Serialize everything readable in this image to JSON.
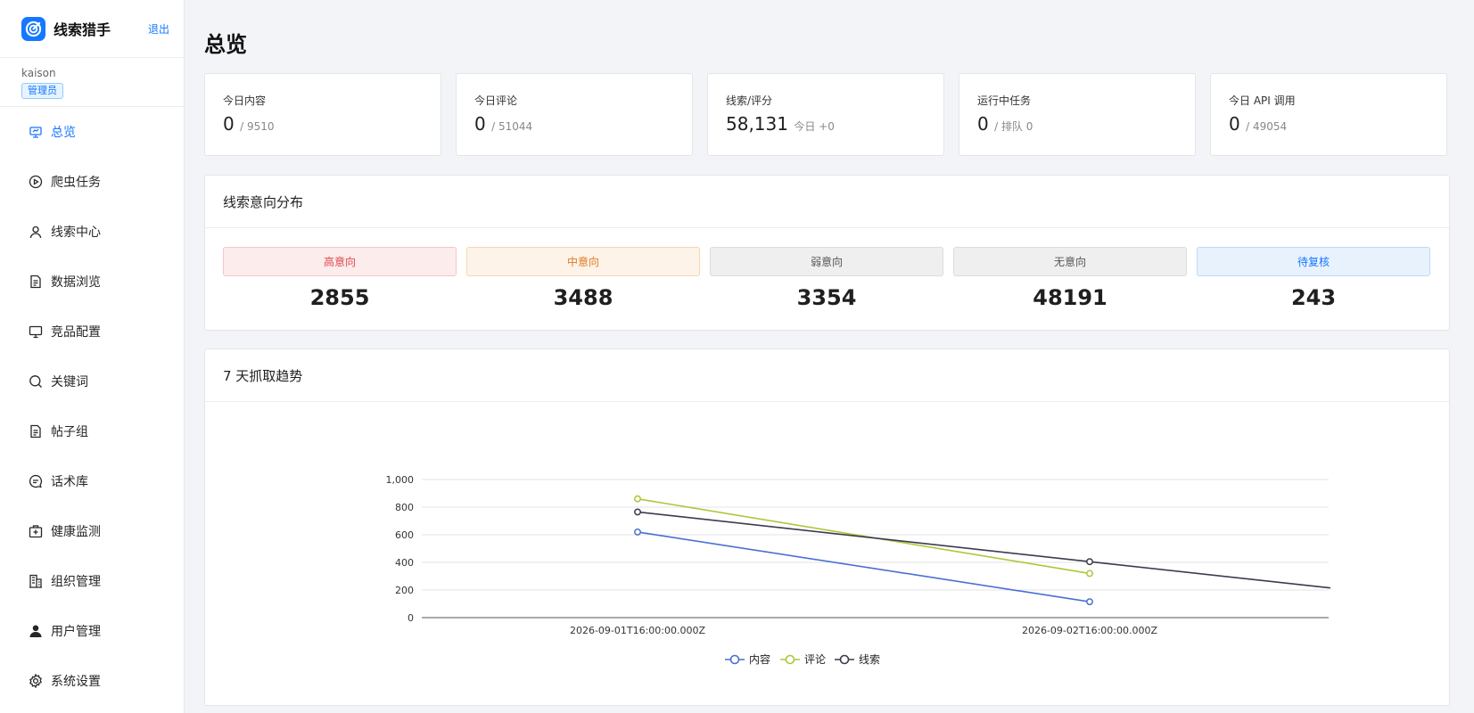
{
  "app": {
    "name": "线索猎手",
    "logout": "退出"
  },
  "user": {
    "name": "kaison",
    "role": "管理员"
  },
  "menu": [
    {
      "label": "总览",
      "icon": "dashboard-icon",
      "active": true
    },
    {
      "label": "爬虫任务",
      "icon": "play-circle-icon"
    },
    {
      "label": "线索中心",
      "icon": "user-icon"
    },
    {
      "label": "数据浏览",
      "icon": "file-text-icon"
    },
    {
      "label": "竞品配置",
      "icon": "monitor-icon"
    },
    {
      "label": "关键词",
      "icon": "search-icon"
    },
    {
      "label": "帖子组",
      "icon": "file-text-icon"
    },
    {
      "label": "话术库",
      "icon": "message-icon"
    },
    {
      "label": "健康监测",
      "icon": "medicine-box-icon"
    },
    {
      "label": "组织管理",
      "icon": "building-icon"
    },
    {
      "label": "用户管理",
      "icon": "user-filled-icon"
    },
    {
      "label": "系统设置",
      "icon": "gear-icon"
    }
  ],
  "page_title": "总览",
  "stats": [
    {
      "label": "今日内容",
      "value": "0",
      "sub": "/ 9510"
    },
    {
      "label": "今日评论",
      "value": "0",
      "sub": "/ 51044"
    },
    {
      "label": "线索/评分",
      "value": "58,131",
      "sub": "今日 +0"
    },
    {
      "label": "运行中任务",
      "value": "0",
      "sub": "/ 排队 0"
    },
    {
      "label": "今日 API 调用",
      "value": "0",
      "sub": "/ 49054"
    }
  ],
  "intent_panel": {
    "title": "线索意向分布",
    "items": [
      {
        "label": "高意向",
        "value": "2855",
        "color": "#e0474d",
        "bg": "#fdecec",
        "border": "#f6c6c8"
      },
      {
        "label": "中意向",
        "value": "3488",
        "color": "#e07b24",
        "bg": "#fdf3e8",
        "border": "#f5d7b4"
      },
      {
        "label": "弱意向",
        "value": "3354",
        "color": "#555555",
        "bg": "#efefef",
        "border": "#dcdcdc"
      },
      {
        "label": "无意向",
        "value": "48191",
        "color": "#555555",
        "bg": "#efefef",
        "border": "#dcdcdc"
      },
      {
        "label": "待复核",
        "value": "243",
        "color": "#1677ff",
        "bg": "#e8f2fd",
        "border": "#bcdaf8"
      }
    ]
  },
  "trend_panel": {
    "title": "7 天抓取趋势"
  },
  "chart_data": {
    "type": "line",
    "x": [
      "2026-09-01T16:00:00.000Z",
      "2026-09-02T16:00:00.000Z"
    ],
    "ylim": [
      0,
      1000
    ],
    "yticks": [
      "0",
      "200",
      "400",
      "600",
      "800",
      "1,000"
    ],
    "grid": true,
    "legend_position": "bottom-center",
    "series": [
      {
        "name": "内容",
        "color": "#4a6fd0",
        "values": [
          620,
          115
        ]
      },
      {
        "name": "评论",
        "color": "#aac83a",
        "values": [
          860,
          320
        ]
      },
      {
        "name": "线索",
        "color": "#3b3b4f",
        "values": [
          765,
          405
        ],
        "extends_to_edge": 215
      }
    ]
  }
}
